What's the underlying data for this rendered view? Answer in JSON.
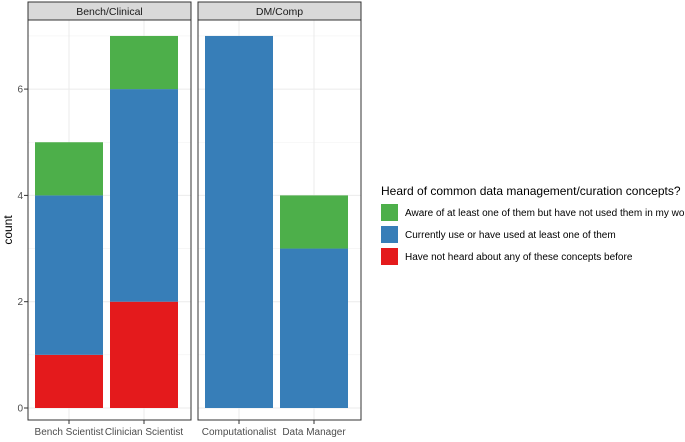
{
  "chart_data": {
    "type": "bar",
    "stacked": true,
    "ylabel": "count",
    "xlabel": "",
    "ylim": [
      0,
      7.3
    ],
    "yticks": [
      0,
      2,
      4,
      6
    ],
    "grid": true,
    "legend_position": "right",
    "legend_title": "Heard of common data management/curation concepts?",
    "colors": {
      "Aware of at least one of them but have not used them in my work": "#4daf4a",
      "Currently use or have used at least one of them": "#377eb8",
      "Have not heard about any of these concepts before": "#e41a1c"
    },
    "legend": [
      "Aware of at least one of them but have not used them in my work",
      "Currently use or have used at least one of them",
      "Have not heard about any of these concepts before"
    ],
    "panels": [
      {
        "title": "Bench/Clinical",
        "categories": [
          "Bench Scientist",
          "Clinician Scientist"
        ],
        "series": [
          {
            "name": "Have not heard about any of these concepts before",
            "values": [
              1,
              2
            ]
          },
          {
            "name": "Currently use or have used at least one of them",
            "values": [
              3,
              4
            ]
          },
          {
            "name": "Aware of at least one of them but have not used them in my work",
            "values": [
              1,
              1
            ]
          }
        ]
      },
      {
        "title": "DM/Comp",
        "categories": [
          "Computationalist",
          "Data Manager"
        ],
        "series": [
          {
            "name": "Have not heard about any of these concepts before",
            "values": [
              0,
              0
            ]
          },
          {
            "name": "Currently use or have used at least one of them",
            "values": [
              7,
              3
            ]
          },
          {
            "name": "Aware of at least one of them but have not used them in my work",
            "values": [
              0,
              1
            ]
          }
        ]
      }
    ]
  }
}
